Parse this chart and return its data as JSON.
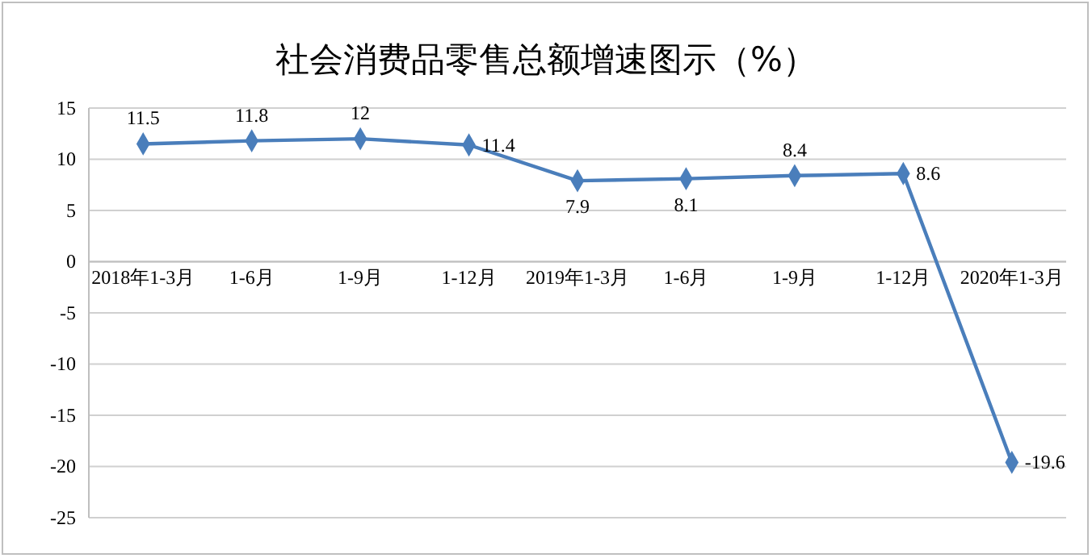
{
  "chart_data": {
    "type": "line",
    "title": "社会消费品零售总额增速图示（%）",
    "categories": [
      "2018年1-3月",
      "1-6月",
      "1-9月",
      "1-12月",
      "2019年1-3月",
      "1-6月",
      "1-9月",
      "1-12月",
      "2020年1-3月"
    ],
    "series": [
      {
        "color": "#4a7ebb",
        "values": [
          11.5,
          11.8,
          12,
          11.4,
          7.9,
          8.1,
          8.4,
          8.6,
          -19.6
        ]
      }
    ],
    "ylim": [
      -25,
      15
    ],
    "yticks": [
      -25,
      -20,
      -15,
      -10,
      -5,
      0,
      5,
      10,
      15
    ],
    "grid": "y",
    "marker": "diamond",
    "line_style": "solid",
    "data_labels": true
  }
}
